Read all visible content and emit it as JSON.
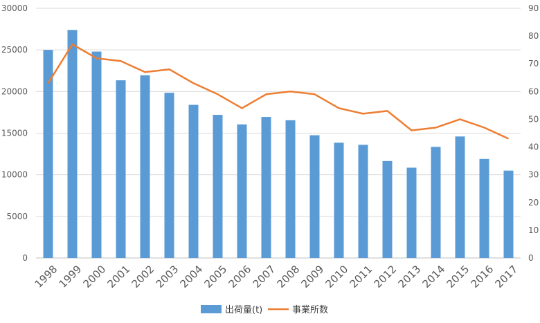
{
  "chart_data": {
    "type": "bar",
    "categories": [
      "1998",
      "1999",
      "2000",
      "2001",
      "2002",
      "2003",
      "2004",
      "2005",
      "2006",
      "2007",
      "2008",
      "2009",
      "2010",
      "2011",
      "2012",
      "2013",
      "2014",
      "2015",
      "2016",
      "2017"
    ],
    "series": [
      {
        "name": "出荷量(t)",
        "type": "bar",
        "axis": "left",
        "color": "#5B9BD5",
        "values": [
          25000,
          27400,
          24800,
          21350,
          21950,
          19850,
          18400,
          17200,
          16050,
          16950,
          16550,
          14750,
          13850,
          13600,
          11650,
          10850,
          13350,
          14600,
          11900,
          10500
        ]
      },
      {
        "name": "事業所数",
        "type": "line",
        "axis": "right",
        "color": "#ED7D31",
        "values": [
          63,
          77,
          72,
          71,
          67,
          68,
          63,
          59,
          54,
          59,
          60,
          59,
          54,
          52,
          53,
          46,
          47,
          50,
          47,
          43
        ]
      }
    ],
    "y_left": {
      "min": 0,
      "max": 30000,
      "ticks": [
        0,
        5000,
        10000,
        15000,
        20000,
        25000,
        30000
      ]
    },
    "y_right": {
      "min": 0,
      "max": 90,
      "ticks": [
        0,
        10,
        20,
        30,
        40,
        50,
        60,
        70,
        80,
        90
      ]
    },
    "grid": true,
    "legend": "bottom"
  }
}
